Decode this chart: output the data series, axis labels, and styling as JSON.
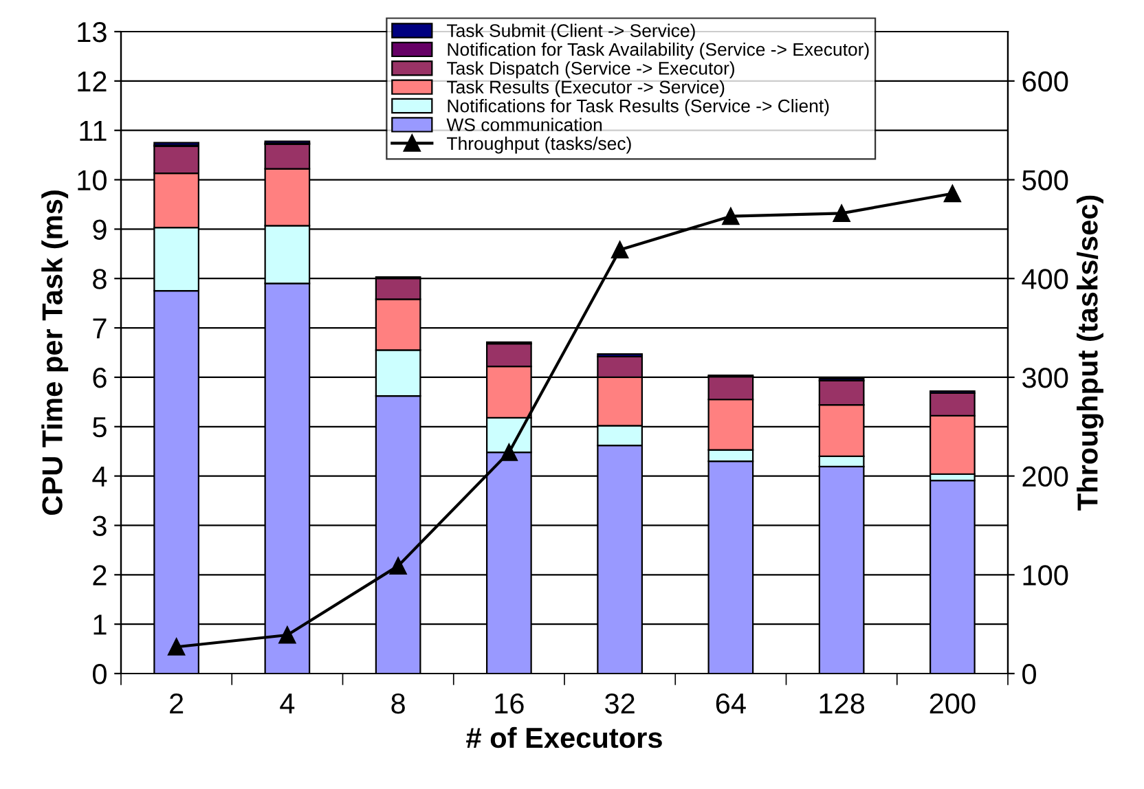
{
  "chart_data": {
    "type": "bar",
    "stacked": true,
    "xlabel": "# of Executors",
    "ylabel": "CPU Time per Task (ms)",
    "y2label": "Throughput (tasks/sec)",
    "categories": [
      "2",
      "4",
      "8",
      "16",
      "32",
      "64",
      "128",
      "200"
    ],
    "series": [
      {
        "name": "WS communication",
        "color": "#9999ff",
        "values": [
          7.75,
          7.9,
          5.62,
          4.48,
          4.62,
          4.3,
          4.19,
          3.91
        ]
      },
      {
        "name": "Notifications for Task Results (Service -> Client)",
        "color": "#ccffff",
        "values": [
          1.28,
          1.17,
          0.93,
          0.7,
          0.4,
          0.23,
          0.21,
          0.13
        ]
      },
      {
        "name": "Task Results (Executor -> Service)",
        "color": "#ff8080",
        "values": [
          1.1,
          1.15,
          1.03,
          1.04,
          0.98,
          1.02,
          1.04,
          1.18
        ]
      },
      {
        "name": "Task Dispatch (Service -> Executor)",
        "color": "#993366",
        "values": [
          0.55,
          0.5,
          0.42,
          0.46,
          0.42,
          0.46,
          0.49,
          0.46
        ]
      },
      {
        "name": "Notification for Task Availability (Service -> Executor)",
        "color": "#660066",
        "values": [
          0.02,
          0.02,
          null,
          null,
          null,
          0.01,
          null,
          null
        ]
      },
      {
        "name": "Task Submit (Client -> Service)",
        "color": "#000080",
        "values": [
          0.05,
          0.04,
          0.03,
          0.03,
          0.05,
          0.02,
          0.04,
          0.04
        ]
      },
      {
        "name": "Throughput (tasks/sec)",
        "type": "line",
        "axis": "y2",
        "color": "#000000",
        "marker": "triangle",
        "values": [
          27,
          39,
          109,
          224,
          429,
          463,
          466,
          486
        ]
      }
    ],
    "ylim": [
      0,
      13
    ],
    "yticks": [
      0,
      1,
      2,
      3,
      4,
      5,
      6,
      7,
      8,
      9,
      10,
      11,
      12,
      13
    ],
    "y2lim": [
      0,
      650
    ],
    "y2ticks": [
      0,
      100,
      200,
      300,
      400,
      500,
      600
    ],
    "grid": "y",
    "legend": "top"
  }
}
